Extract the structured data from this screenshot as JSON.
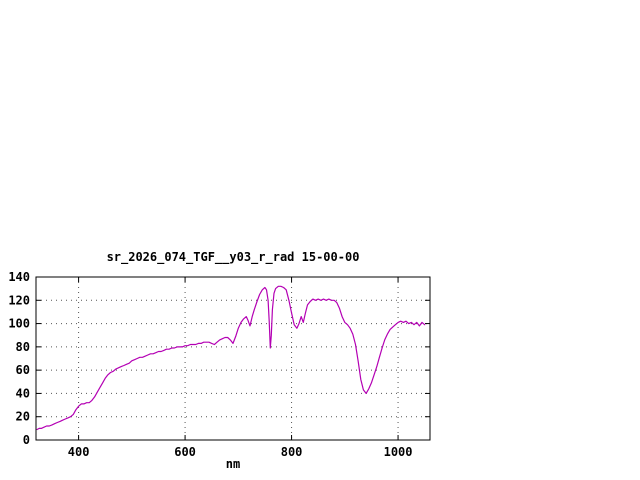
{
  "chart_data": {
    "type": "line",
    "title": "sr_2026_074_TGF__y03_r_rad 15-00-00",
    "xlabel": "nm",
    "ylabel": "",
    "xlim": [
      320,
      1060
    ],
    "ylim": [
      0,
      140
    ],
    "xticks": [
      400,
      600,
      800,
      1000
    ],
    "yticks": [
      0,
      20,
      40,
      60,
      80,
      100,
      120,
      140
    ],
    "grid": true,
    "legend": "none",
    "line_color": "#b400b4",
    "x": [
      322,
      326,
      330,
      335,
      340,
      345,
      350,
      355,
      360,
      365,
      370,
      375,
      380,
      385,
      390,
      395,
      400,
      405,
      410,
      415,
      420,
      425,
      430,
      435,
      440,
      445,
      450,
      455,
      460,
      465,
      470,
      475,
      480,
      485,
      490,
      495,
      500,
      505,
      510,
      515,
      520,
      525,
      530,
      535,
      540,
      545,
      550,
      555,
      560,
      565,
      570,
      575,
      580,
      585,
      590,
      595,
      600,
      605,
      610,
      615,
      620,
      625,
      630,
      635,
      640,
      645,
      650,
      655,
      660,
      665,
      670,
      675,
      680,
      685,
      690,
      695,
      700,
      705,
      710,
      715,
      718,
      722,
      726,
      730,
      735,
      740,
      745,
      750,
      753,
      756,
      758,
      760,
      762,
      764,
      767,
      770,
      775,
      780,
      785,
      790,
      795,
      800,
      805,
      810,
      814,
      818,
      822,
      826,
      830,
      835,
      840,
      845,
      850,
      855,
      860,
      865,
      870,
      875,
      880,
      885,
      890,
      895,
      900,
      905,
      910,
      915,
      920,
      925,
      930,
      935,
      940,
      945,
      950,
      955,
      960,
      965,
      970,
      975,
      980,
      985,
      990,
      995,
      1000,
      1005,
      1010,
      1015,
      1020,
      1025,
      1030,
      1035,
      1040,
      1045,
      1050
    ],
    "y": [
      9,
      10,
      10,
      11,
      12,
      12,
      13,
      14,
      15,
      16,
      17,
      18,
      19,
      20,
      22,
      26,
      29,
      31,
      31,
      32,
      32,
      34,
      37,
      41,
      45,
      49,
      53,
      56,
      58,
      59,
      61,
      62,
      63,
      64,
      65,
      66,
      68,
      69,
      70,
      71,
      71,
      72,
      73,
      74,
      74,
      75,
      76,
      76,
      77,
      78,
      78,
      79,
      79,
      80,
      80,
      80,
      81,
      81,
      82,
      82,
      82,
      83,
      83,
      84,
      84,
      84,
      83,
      82,
      84,
      86,
      87,
      88,
      88,
      86,
      83,
      89,
      96,
      101,
      104,
      106,
      103,
      98,
      106,
      112,
      119,
      125,
      129,
      131,
      129,
      120,
      102,
      79,
      90,
      112,
      126,
      130,
      132,
      132,
      131,
      129,
      120,
      109,
      99,
      96,
      100,
      106,
      101,
      109,
      116,
      119,
      121,
      120,
      121,
      120,
      121,
      120,
      121,
      120,
      120,
      118,
      113,
      106,
      101,
      99,
      96,
      91,
      82,
      68,
      52,
      43,
      40,
      44,
      49,
      56,
      63,
      71,
      79,
      86,
      91,
      95,
      97,
      99,
      101,
      102,
      101,
      102,
      100,
      101,
      99,
      101,
      98,
      101,
      99
    ]
  }
}
